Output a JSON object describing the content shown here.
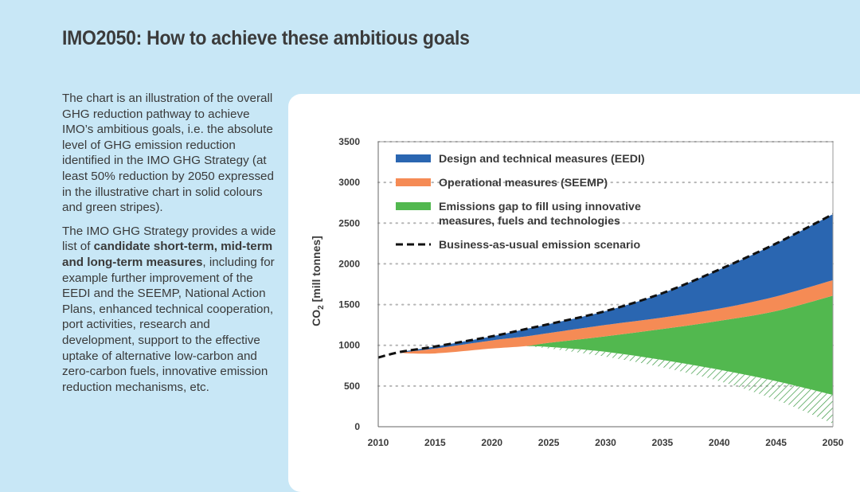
{
  "page": {
    "title": "IMO2050: How to achieve these ambitious goals",
    "paragraph1": "The chart is an illustration of the overall GHG reduction pathway to achieve IMO’s ambitious goals, i.e. the absolute level of GHG emission reduction identified in the IMO GHG Strategy (at least 50% reduction by 2050 expressed in the illustrative chart in solid colours and green stripes).",
    "paragraph2_before": "The IMO GHG Strategy provides a wide list of ",
    "paragraph2_bold": "candidate short-term, mid-term and long-term measures",
    "paragraph2_after": ", including for example further improvement of the EEDI and the SEEMP, National Action Plans, enhanced technical cooperation, port activities, research and development, support to the effective uptake of alternative low-carbon and zero-carbon fuels, innovative emission reduction mechanisms, etc."
  },
  "chart_data": {
    "type": "area",
    "xlabel": "",
    "ylabel_main": "CO",
    "ylabel_sub": "2",
    "ylabel_rest": " [mill tonnes]",
    "xlim": [
      2010,
      2050
    ],
    "ylim": [
      0,
      3500
    ],
    "xticks": [
      2010,
      2015,
      2020,
      2025,
      2030,
      2035,
      2040,
      2045,
      2050
    ],
    "yticks": [
      0,
      500,
      1000,
      1500,
      2000,
      2500,
      3000,
      3500
    ],
    "grid": "horizontal dotted",
    "legend_position": "top-left",
    "colors": {
      "eedi": "#2a66b1",
      "seemp": "#f58b55",
      "gap": "#52b84f",
      "hatch": "#3c9a44",
      "bau": "#111111"
    },
    "legend": [
      {
        "key": "eedi",
        "label": "Design and technical measures (EEDI)"
      },
      {
        "key": "seemp",
        "label": "Operational measures (SEEMP)"
      },
      {
        "key": "gap",
        "label": "Emissions gap to fill using innovative",
        "label2": "measures, fuels and technologies"
      },
      {
        "key": "bau",
        "label": "Business-as-usual emission scenario"
      }
    ],
    "x": [
      2010,
      2012,
      2015,
      2020,
      2023,
      2025,
      2030,
      2035,
      2040,
      2045,
      2050
    ],
    "series": [
      {
        "name": "Business-as-usual emission scenario",
        "key": "bau",
        "values": [
          850,
          920,
          985,
          1110,
          1200,
          1260,
          1420,
          1640,
          1930,
          2250,
          2610
        ]
      },
      {
        "name": "Design and technical measures (EEDI)",
        "key": "eedi_floor",
        "values": [
          null,
          910,
          960,
          1060,
          1110,
          1150,
          1250,
          1340,
          1450,
          1600,
          1800
        ]
      },
      {
        "name": "Operational measures (SEEMP)",
        "key": "seemp_floor",
        "values": [
          null,
          905,
          900,
          960,
          990,
          1030,
          1110,
          1200,
          1300,
          1420,
          1610
        ]
      },
      {
        "name": "Emissions gap to fill using innovative measures, fuels and technologies",
        "key": "gap_floor",
        "values": [
          null,
          null,
          null,
          null,
          990,
          980,
          920,
          820,
          700,
          560,
          390
        ]
      },
      {
        "name": "Hatched reduction",
        "key": "hatch_floor",
        "values": [
          null,
          null,
          null,
          null,
          990,
          960,
          860,
          730,
          560,
          330,
          40
        ]
      }
    ]
  }
}
